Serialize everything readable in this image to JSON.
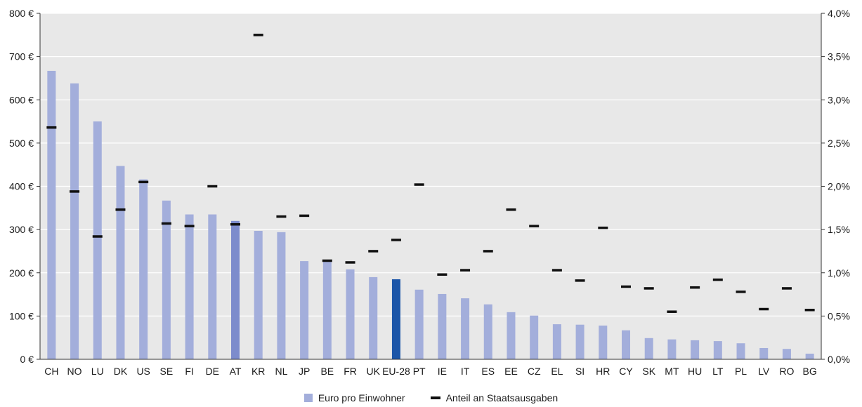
{
  "chart_data": {
    "type": "bar",
    "categories": [
      "CH",
      "NO",
      "LU",
      "DK",
      "US",
      "SE",
      "FI",
      "DE",
      "AT",
      "KR",
      "NL",
      "JP",
      "BE",
      "FR",
      "UK",
      "EU-28",
      "PT",
      "IE",
      "IT",
      "ES",
      "EE",
      "CZ",
      "EL",
      "SI",
      "HR",
      "CY",
      "SK",
      "MT",
      "HU",
      "LT",
      "PL",
      "LV",
      "RO",
      "BG"
    ],
    "series": [
      {
        "name": "Euro pro Einwohner",
        "axis": "left",
        "type": "bar",
        "values": [
          667,
          638,
          550,
          447,
          416,
          367,
          335,
          335,
          320,
          297,
          294,
          227,
          227,
          208,
          190,
          185,
          161,
          151,
          141,
          127,
          109,
          101,
          81,
          80,
          78,
          67,
          49,
          46,
          44,
          42,
          37,
          26,
          24,
          13
        ],
        "color": "#a3aedb",
        "highlight": {
          "AT": "#7d8ccc",
          "EU-28": "#1b55a8"
        }
      },
      {
        "name": "Anteil an Staatsausgaben",
        "axis": "right",
        "type": "dash",
        "values": [
          2.68,
          1.94,
          1.42,
          1.73,
          2.05,
          1.57,
          1.54,
          2.0,
          1.56,
          3.75,
          1.65,
          1.66,
          1.14,
          1.12,
          1.25,
          1.38,
          2.02,
          0.98,
          1.03,
          1.25,
          1.73,
          1.54,
          1.03,
          0.91,
          1.52,
          0.84,
          0.82,
          0.55,
          0.83,
          0.92,
          0.78,
          0.58,
          0.82,
          0.57
        ],
        "color": "#111111"
      }
    ],
    "y_left": {
      "ylim": [
        0,
        800
      ],
      "ticks": [
        0,
        100,
        200,
        300,
        400,
        500,
        600,
        700,
        800
      ],
      "tick_labels": [
        "0  €",
        "100 €",
        "200 €",
        "300 €",
        "400 €",
        "500 €",
        "600 €",
        "700 €",
        "800 €"
      ]
    },
    "y_right": {
      "ylim": [
        0,
        4.0
      ],
      "ticks": [
        0,
        0.5,
        1.0,
        1.5,
        2.0,
        2.5,
        3.0,
        3.5,
        4.0
      ],
      "tick_labels": [
        "0,0%",
        "0,5%",
        "1,0%",
        "1,5%",
        "2,0%",
        "2,5%",
        "3,0%",
        "3,5%",
        "4,0%"
      ]
    },
    "grid": true,
    "background": "#e8e8e8",
    "legend_position": "bottom-center"
  },
  "legend": {
    "bar_label": "Euro pro Einwohner",
    "dash_label": "Anteil an Staatsausgaben"
  }
}
